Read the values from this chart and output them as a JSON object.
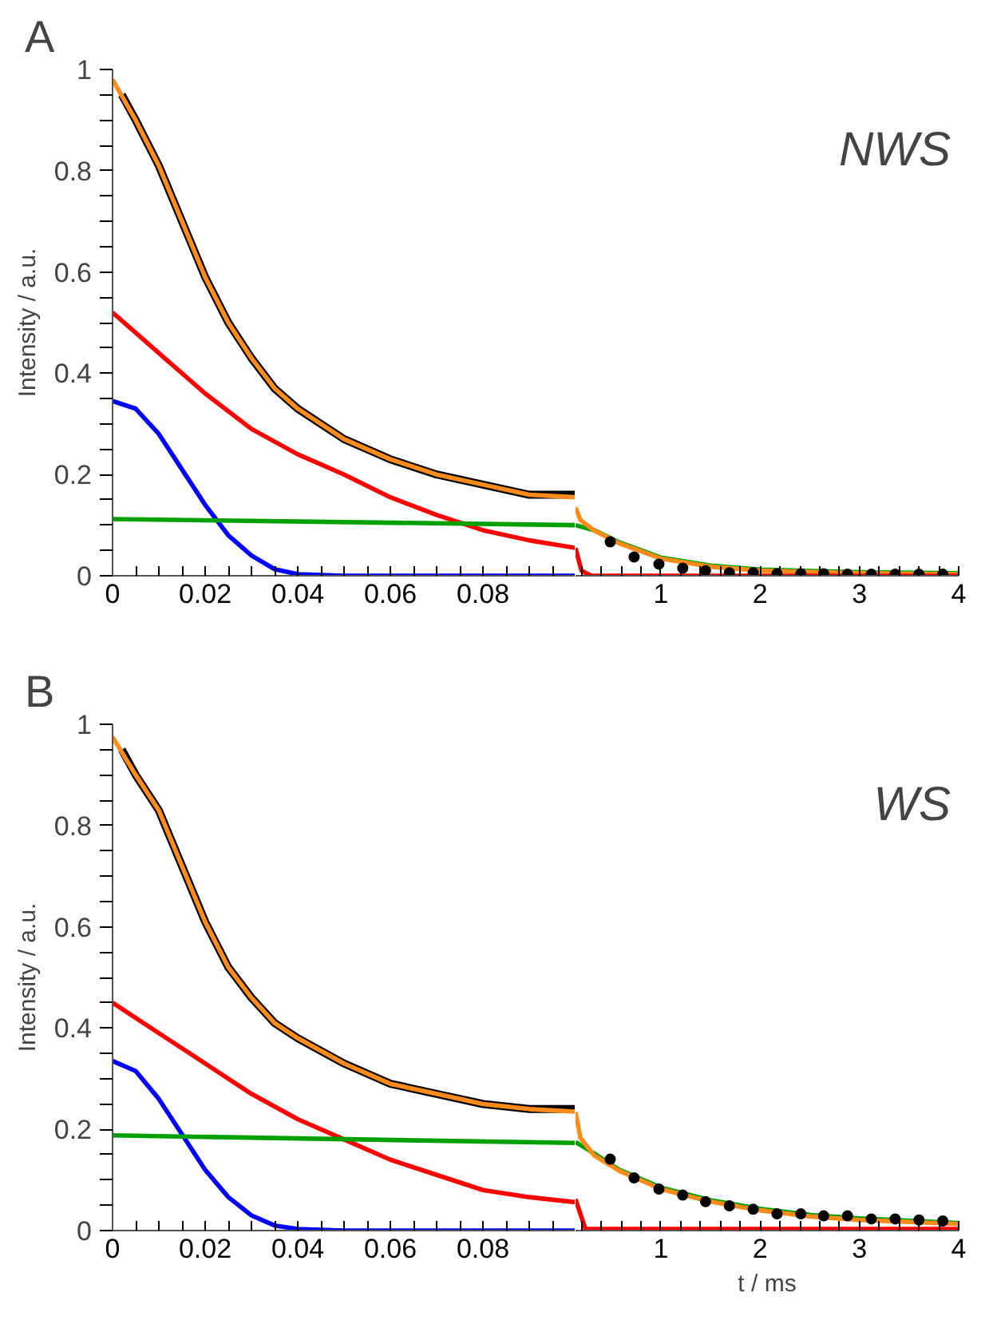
{
  "chart_data": [
    {
      "type": "line",
      "title": "A",
      "ylabel": "Intensity / a.u.",
      "xlim": [
        0,
        0.1
      ],
      "ylim": [
        0,
        1
      ],
      "xticks": [
        0,
        {
          "value": 0.005,
          "label": null
        },
        {
          "value": 0.01,
          "label": null
        },
        {
          "value": 0.015,
          "label": null
        },
        0.02,
        {
          "value": 0.025,
          "label": null
        },
        {
          "value": 0.03,
          "label": null
        },
        {
          "value": 0.035,
          "label": null
        },
        0.04,
        {
          "value": 0.045,
          "label": null
        },
        {
          "value": 0.05,
          "label": null
        },
        {
          "value": 0.055,
          "label": null
        },
        0.06,
        {
          "value": 0.065,
          "label": null
        },
        {
          "value": 0.07,
          "label": null
        },
        {
          "value": 0.075,
          "label": null
        },
        0.08,
        {
          "value": 0.085,
          "label": null
        },
        {
          "value": 0.09,
          "label": null
        },
        {
          "value": 0.095,
          "label": null
        }
      ],
      "yticks": [
        0,
        {
          "value": 0.05,
          "label": null
        },
        {
          "value": 0.1,
          "label": null
        },
        {
          "value": 0.15,
          "label": null
        },
        0.2,
        {
          "value": 0.25,
          "label": null
        },
        {
          "value": 0.3,
          "label": null
        },
        {
          "value": 0.35,
          "label": null
        },
        0.4,
        {
          "value": 0.45,
          "label": null
        },
        {
          "value": 0.5,
          "label": null
        },
        {
          "value": 0.55,
          "label": null
        },
        0.6,
        {
          "value": 0.65,
          "label": null
        },
        {
          "value": 0.7,
          "label": null
        },
        {
          "value": 0.75,
          "label": null
        },
        0.8,
        {
          "value": 0.85,
          "label": null
        },
        {
          "value": 0.9,
          "label": null
        },
        {
          "value": 0.95,
          "label": null
        },
        1
      ],
      "grid": false,
      "series": [
        {
          "color": "#000000",
          "x": [
            0.002,
            0.005,
            0.01,
            0.015,
            0.02,
            0.025,
            0.03,
            0.035,
            0.04,
            0.05,
            0.06,
            0.07,
            0.08,
            0.09,
            0.1
          ],
          "values": [
            0.95,
            0.9,
            0.81,
            0.7,
            0.59,
            0.5,
            0.43,
            0.37,
            0.33,
            0.27,
            0.23,
            0.2,
            0.18,
            0.16,
            0.16
          ]
        },
        {
          "color": "#ff8c1a",
          "x": [
            0,
            0.005,
            0.01,
            0.015,
            0.02,
            0.025,
            0.03,
            0.035,
            0.04,
            0.05,
            0.06,
            0.07,
            0.08,
            0.09,
            0.1
          ],
          "values": [
            0.98,
            0.9,
            0.81,
            0.7,
            0.59,
            0.5,
            0.43,
            0.37,
            0.33,
            0.27,
            0.23,
            0.2,
            0.18,
            0.16,
            0.155
          ]
        },
        {
          "color": "#ff0000",
          "x": [
            0,
            0.01,
            0.02,
            0.03,
            0.04,
            0.05,
            0.06,
            0.07,
            0.08,
            0.09,
            0.1
          ],
          "values": [
            0.52,
            0.44,
            0.36,
            0.29,
            0.24,
            0.2,
            0.155,
            0.12,
            0.09,
            0.07,
            0.055
          ]
        },
        {
          "color": "#0000ff",
          "x": [
            0,
            0.005,
            0.01,
            0.015,
            0.02,
            0.025,
            0.03,
            0.035,
            0.04,
            0.05,
            0.1
          ],
          "values": [
            0.345,
            0.33,
            0.28,
            0.21,
            0.14,
            0.08,
            0.04,
            0.013,
            0.003,
            0,
            0
          ]
        },
        {
          "color": "#00a000",
          "x": [
            0,
            0.1
          ],
          "values": [
            0.112,
            0.1
          ]
        }
      ]
    },
    {
      "type": "line",
      "annotations": [
        "NWS"
      ],
      "xlim": [
        0.14,
        4
      ],
      "ylim": [
        0,
        1
      ],
      "tick_labels": "x",
      "xticks": [
        {
          "value": 0.2,
          "label": null
        },
        {
          "value": 0.4,
          "label": null
        },
        {
          "value": 0.6,
          "label": null
        },
        {
          "value": 0.8,
          "label": null
        },
        1,
        {
          "value": 1.2,
          "label": null
        },
        {
          "value": 1.4,
          "label": null
        },
        {
          "value": 1.6,
          "label": null
        },
        {
          "value": 1.8,
          "label": null
        },
        2,
        {
          "value": 2.2,
          "label": null
        },
        {
          "value": 2.4,
          "label": null
        },
        {
          "value": 2.6,
          "label": null
        },
        {
          "value": 2.8,
          "label": null
        },
        3,
        {
          "value": 3.2,
          "label": null
        },
        {
          "value": 3.4,
          "label": null
        },
        {
          "value": 3.6,
          "label": null
        },
        {
          "value": 3.8,
          "label": null
        },
        4
      ],
      "grid": false,
      "series": [
        {
          "type": "scatter",
          "marker": "circle",
          "color": "#000000",
          "x": [
            0.49,
            0.73,
            0.98,
            1.22,
            1.45,
            1.69,
            1.93,
            2.17,
            2.41,
            2.64,
            2.88,
            3.12,
            3.36,
            3.6,
            3.84
          ],
          "values": [
            0.067,
            0.037,
            0.023,
            0.015,
            0.01,
            0.006,
            0.006,
            0.004,
            0.004,
            0.004,
            0.003,
            0.003,
            0.003,
            0.003,
            0.003
          ]
        },
        {
          "color": "#00a000",
          "x": [
            0.14,
            0.33,
            0.58,
            1,
            1.5,
            2,
            3,
            4
          ],
          "values": [
            0.1,
            0.09,
            0.066,
            0.036,
            0.02,
            0.012,
            0.007,
            0.005
          ]
        },
        {
          "color": "#ff8c1a",
          "x": [
            0.14,
            0.19,
            0.33,
            0.58,
            1,
            1.5,
            2,
            3,
            4
          ],
          "values": [
            0.135,
            0.11,
            0.089,
            0.064,
            0.034,
            0.018,
            0.01,
            0.005,
            0.003
          ]
        },
        {
          "color": "#ff0000",
          "x": [
            0.14,
            0.2,
            0.3,
            4
          ],
          "values": [
            0.055,
            0.01,
            0,
            0
          ]
        }
      ]
    },
    {
      "type": "line",
      "title": "B",
      "ylabel": "Intensity / a.u.",
      "xlim": [
        0,
        0.1
      ],
      "ylim": [
        0,
        1
      ],
      "xticks": [
        0,
        {
          "value": 0.005,
          "label": null
        },
        {
          "value": 0.01,
          "label": null
        },
        {
          "value": 0.015,
          "label": null
        },
        0.02,
        {
          "value": 0.025,
          "label": null
        },
        {
          "value": 0.03,
          "label": null
        },
        {
          "value": 0.035,
          "label": null
        },
        0.04,
        {
          "value": 0.045,
          "label": null
        },
        {
          "value": 0.05,
          "label": null
        },
        {
          "value": 0.055,
          "label": null
        },
        0.06,
        {
          "value": 0.065,
          "label": null
        },
        {
          "value": 0.07,
          "label": null
        },
        {
          "value": 0.075,
          "label": null
        },
        0.08,
        {
          "value": 0.085,
          "label": null
        },
        {
          "value": 0.09,
          "label": null
        },
        {
          "value": 0.095,
          "label": null
        }
      ],
      "yticks": [
        0,
        {
          "value": 0.05,
          "label": null
        },
        {
          "value": 0.1,
          "label": null
        },
        {
          "value": 0.15,
          "label": null
        },
        0.2,
        {
          "value": 0.25,
          "label": null
        },
        {
          "value": 0.3,
          "label": null
        },
        {
          "value": 0.35,
          "label": null
        },
        0.4,
        {
          "value": 0.45,
          "label": null
        },
        {
          "value": 0.5,
          "label": null
        },
        {
          "value": 0.55,
          "label": null
        },
        0.6,
        {
          "value": 0.65,
          "label": null
        },
        {
          "value": 0.7,
          "label": null
        },
        {
          "value": 0.75,
          "label": null
        },
        0.8,
        {
          "value": 0.85,
          "label": null
        },
        {
          "value": 0.9,
          "label": null
        },
        {
          "value": 0.95,
          "label": null
        },
        1
      ],
      "grid": false,
      "series": [
        {
          "color": "#000000",
          "x": [
            0.002,
            0.005,
            0.01,
            0.015,
            0.02,
            0.025,
            0.03,
            0.035,
            0.04,
            0.05,
            0.06,
            0.07,
            0.08,
            0.09,
            0.1
          ],
          "values": [
            0.95,
            0.9,
            0.83,
            0.72,
            0.61,
            0.52,
            0.46,
            0.41,
            0.38,
            0.33,
            0.29,
            0.27,
            0.25,
            0.24,
            0.24
          ]
        },
        {
          "color": "#ff8c1a",
          "x": [
            0,
            0.005,
            0.01,
            0.015,
            0.02,
            0.025,
            0.03,
            0.035,
            0.04,
            0.05,
            0.06,
            0.07,
            0.08,
            0.09,
            0.1
          ],
          "values": [
            0.975,
            0.9,
            0.83,
            0.72,
            0.61,
            0.52,
            0.46,
            0.41,
            0.38,
            0.33,
            0.29,
            0.27,
            0.25,
            0.24,
            0.235
          ]
        },
        {
          "color": "#ff0000",
          "x": [
            0,
            0.01,
            0.02,
            0.03,
            0.04,
            0.05,
            0.06,
            0.07,
            0.08,
            0.09,
            0.1
          ],
          "values": [
            0.45,
            0.39,
            0.33,
            0.27,
            0.22,
            0.18,
            0.14,
            0.11,
            0.08,
            0.066,
            0.056
          ]
        },
        {
          "color": "#0000ff",
          "x": [
            0,
            0.005,
            0.01,
            0.015,
            0.02,
            0.025,
            0.03,
            0.035,
            0.04,
            0.05,
            0.1
          ],
          "values": [
            0.335,
            0.315,
            0.26,
            0.19,
            0.12,
            0.066,
            0.03,
            0.01,
            0.003,
            0,
            0
          ]
        },
        {
          "color": "#00a000",
          "x": [
            0,
            0.1
          ],
          "values": [
            0.188,
            0.173
          ]
        }
      ]
    },
    {
      "type": "line",
      "annotations": [
        "WS"
      ],
      "xlabel": "t / ms",
      "xlim": [
        0.14,
        4
      ],
      "ylim": [
        0,
        1
      ],
      "tick_labels": "x",
      "xticks": [
        {
          "value": 0.2,
          "label": null
        },
        {
          "value": 0.4,
          "label": null
        },
        {
          "value": 0.6,
          "label": null
        },
        {
          "value": 0.8,
          "label": null
        },
        1,
        {
          "value": 1.2,
          "label": null
        },
        {
          "value": 1.4,
          "label": null
        },
        {
          "value": 1.6,
          "label": null
        },
        {
          "value": 1.8,
          "label": null
        },
        2,
        {
          "value": 2.2,
          "label": null
        },
        {
          "value": 2.4,
          "label": null
        },
        {
          "value": 2.6,
          "label": null
        },
        {
          "value": 2.8,
          "label": null
        },
        3,
        {
          "value": 3.2,
          "label": null
        },
        {
          "value": 3.4,
          "label": null
        },
        {
          "value": 3.6,
          "label": null
        },
        {
          "value": 3.8,
          "label": null
        },
        4
      ],
      "grid": false,
      "series": [
        {
          "type": "scatter",
          "marker": "circle",
          "color": "#000000",
          "x": [
            0.49,
            0.73,
            0.98,
            1.22,
            1.45,
            1.69,
            1.93,
            2.17,
            2.41,
            2.64,
            2.88,
            3.12,
            3.36,
            3.6,
            3.84
          ],
          "values": [
            0.141,
            0.104,
            0.082,
            0.07,
            0.057,
            0.049,
            0.042,
            0.033,
            0.033,
            0.029,
            0.029,
            0.023,
            0.023,
            0.021,
            0.019
          ]
        },
        {
          "color": "#00a000",
          "x": [
            0.14,
            0.33,
            0.58,
            1,
            1.5,
            2,
            2.5,
            3,
            4
          ],
          "values": [
            0.175,
            0.152,
            0.12,
            0.085,
            0.06,
            0.043,
            0.031,
            0.024,
            0.015
          ]
        },
        {
          "color": "#ff8c1a",
          "x": [
            0.14,
            0.19,
            0.33,
            0.58,
            1,
            1.5,
            2,
            2.5,
            3,
            4
          ],
          "values": [
            0.234,
            0.183,
            0.148,
            0.118,
            0.082,
            0.057,
            0.04,
            0.028,
            0.021,
            0.013
          ]
        },
        {
          "color": "#ff0000",
          "x": [
            0.14,
            0.24,
            4
          ],
          "values": [
            0.062,
            0.003,
            0.003
          ]
        }
      ]
    }
  ]
}
